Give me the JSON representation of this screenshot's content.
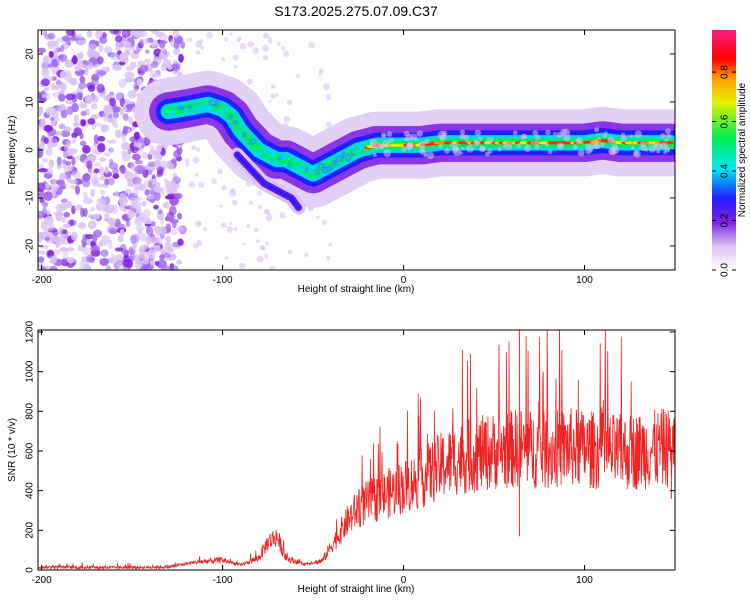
{
  "title": "S173.2025.275.07.09.C37",
  "chart_data": [
    {
      "type": "heatmap",
      "title": "S173.2025.275.07.09.C37",
      "xlabel": "Height of straight line (km)",
      "ylabel": "Frequency (Hz)",
      "xlim": [
        -202,
        150
      ],
      "ylim": [
        -25,
        25
      ],
      "xticks": [
        -200,
        -100,
        0,
        100
      ],
      "xtick_labels": [
        "-200",
        "-100",
        "0",
        "100"
      ],
      "yticks": [
        -20,
        -10,
        0,
        10,
        20
      ],
      "ytick_labels": [
        "-20",
        "-10",
        "0",
        "10",
        "20"
      ],
      "noise_region_x": [
        -202,
        -122
      ],
      "ridge": {
        "description": "main spectral ridge (frequency vs height)",
        "x": [
          -130,
          -122,
          -115,
          -108,
          -100,
          -95,
          -90,
          -85,
          -80,
          -75,
          -70,
          -65,
          -60,
          -55,
          -50,
          -45,
          -40,
          -35,
          -30,
          -25,
          -20,
          -15,
          -10,
          -5,
          0,
          10,
          20,
          30,
          40,
          50,
          60,
          70,
          80,
          90,
          100,
          110,
          120,
          130,
          140,
          148
        ],
        "y": [
          8,
          8.5,
          9,
          9.5,
          8.5,
          7,
          4,
          2,
          0,
          -1,
          -2,
          -2,
          -3,
          -4,
          -5,
          -4,
          -3,
          -2,
          -1,
          0,
          0.5,
          1,
          1,
          1,
          1,
          1,
          1.5,
          1.5,
          1.5,
          1.5,
          1.5,
          1.5,
          1.5,
          1.5,
          1.5,
          2,
          1.5,
          1.5,
          1.5,
          1.5
        ]
      },
      "branch": {
        "description": "secondary lower branch",
        "x": [
          -92,
          -87,
          -82,
          -77,
          -72,
          -67,
          -62,
          -58
        ],
        "y": [
          -1,
          -3,
          -5,
          -7,
          -8,
          -9,
          -10,
          -12
        ]
      },
      "colorbar": {
        "label": "Normalized spectral amplitude",
        "range": [
          0,
          0.97
        ],
        "ticks": [
          0,
          0.2,
          0.4,
          0.6,
          0.8
        ],
        "tick_labels": [
          "0.0",
          "0.2",
          "0.4",
          "0.6",
          "0.8"
        ],
        "colormap": [
          "#ffffff",
          "#d9c2f5",
          "#7f1fe0",
          "#1f1fff",
          "#00e6f0",
          "#00ee55",
          "#e6f000",
          "#ff9a00",
          "#ff0000",
          "#ff1f86"
        ]
      }
    },
    {
      "type": "line",
      "xlabel": "Height of straight line (km)",
      "ylabel": "SNR (10 * v/v)",
      "xlim": [
        -202,
        150
      ],
      "ylim": [
        0,
        1210
      ],
      "xticks": [
        -200,
        -100,
        0,
        100
      ],
      "xtick_labels": [
        "-200",
        "-100",
        "0",
        "100"
      ],
      "yticks": [
        0,
        200,
        400,
        600,
        800,
        1000,
        1200
      ],
      "ytick_labels": [
        "0",
        "200",
        "400",
        "600",
        "800",
        "1000",
        "1200"
      ],
      "color": "#ee2222",
      "envelope": {
        "description": "approximate center level of the noisy SNR trace",
        "x": [
          -202,
          -160,
          -130,
          -115,
          -100,
          -90,
          -80,
          -75,
          -70,
          -65,
          -55,
          -45,
          -40,
          -35,
          -30,
          -25,
          -20,
          -10,
          0,
          10,
          20,
          30,
          40,
          50,
          60,
          64,
          70,
          80,
          90,
          100,
          110,
          120,
          130,
          140,
          150
        ],
        "y": [
          15,
          12,
          15,
          40,
          50,
          25,
          60,
          140,
          170,
          60,
          30,
          45,
          120,
          190,
          260,
          310,
          340,
          380,
          420,
          460,
          520,
          560,
          580,
          600,
          610,
          620,
          610,
          600,
          620,
          610,
          600,
          590,
          600,
          610,
          620
        ]
      },
      "notable_points": [
        {
          "x": 64,
          "y": 1210,
          "label": "spike"
        },
        {
          "x": 64,
          "y": 170,
          "label": "dip"
        },
        {
          "x": 148,
          "y": 360,
          "label": "end dip"
        }
      ]
    }
  ]
}
